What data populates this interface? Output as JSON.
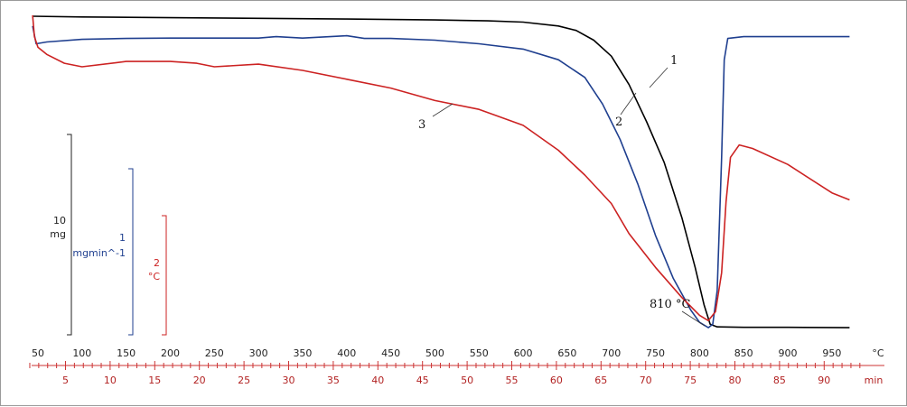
{
  "chart_data": {
    "type": "line",
    "temperature_axis": {
      "unit": "°C",
      "range": [
        44,
        970
      ],
      "ticks": [
        "50",
        "100",
        "150",
        "200",
        "250",
        "300",
        "350",
        "400",
        "450",
        "500",
        "550",
        "600",
        "650",
        "700",
        "750",
        "800",
        "850",
        "900",
        "950"
      ]
    },
    "time_axis": {
      "unit": "min",
      "range": [
        0.5,
        94
      ],
      "ticks": [
        "5",
        "10",
        "15",
        "20",
        "25",
        "30",
        "35",
        "40",
        "45",
        "50",
        "55",
        "60",
        "65",
        "70",
        "75",
        "80",
        "85",
        "90"
      ]
    },
    "scale_bars": [
      {
        "value": "10",
        "unit": "mg",
        "color": "#222222"
      },
      {
        "value": "1",
        "unit": "mgmin^-1",
        "color": "#1f3f8f"
      },
      {
        "value": "2",
        "unit": "°C",
        "color": "#cc2222"
      }
    ],
    "series": [
      {
        "name": "1",
        "color": "#000000",
        "points": [
          [
            44,
            0.05
          ],
          [
            100,
            0.09
          ],
          [
            200,
            0.13
          ],
          [
            300,
            0.17
          ],
          [
            400,
            0.21
          ],
          [
            500,
            0.26
          ],
          [
            560,
            0.31
          ],
          [
            600,
            0.38
          ],
          [
            640,
            0.6
          ],
          [
            660,
            0.85
          ],
          [
            680,
            1.4
          ],
          [
            700,
            2.3
          ],
          [
            720,
            3.9
          ],
          [
            740,
            6.0
          ],
          [
            760,
            8.3
          ],
          [
            780,
            11.4
          ],
          [
            795,
            14.2
          ],
          [
            805,
            16.3
          ],
          [
            812,
            17.4
          ],
          [
            820,
            17.55
          ],
          [
            850,
            17.58
          ],
          [
            900,
            17.58
          ],
          [
            970,
            17.6
          ]
        ]
      },
      {
        "name": "2",
        "color": "#1f3f8f",
        "points": [
          [
            44,
            0.6
          ],
          [
            48,
            1.6
          ],
          [
            60,
            1.5
          ],
          [
            100,
            1.35
          ],
          [
            150,
            1.3
          ],
          [
            200,
            1.28
          ],
          [
            250,
            1.28
          ],
          [
            300,
            1.28
          ],
          [
            320,
            1.2
          ],
          [
            350,
            1.28
          ],
          [
            400,
            1.15
          ],
          [
            420,
            1.3
          ],
          [
            450,
            1.3
          ],
          [
            500,
            1.4
          ],
          [
            550,
            1.6
          ],
          [
            600,
            1.9
          ],
          [
            640,
            2.5
          ],
          [
            670,
            3.5
          ],
          [
            690,
            5.0
          ],
          [
            710,
            7.0
          ],
          [
            730,
            9.5
          ],
          [
            750,
            12.4
          ],
          [
            770,
            14.8
          ],
          [
            790,
            16.6
          ],
          [
            800,
            17.3
          ],
          [
            810,
            17.6
          ],
          [
            815,
            17.4
          ],
          [
            820,
            15.5
          ],
          [
            825,
            8.0
          ],
          [
            828,
            2.5
          ],
          [
            832,
            1.3
          ],
          [
            850,
            1.2
          ],
          [
            900,
            1.2
          ],
          [
            970,
            1.2
          ]
        ]
      },
      {
        "name": "3",
        "color": "#cc2222",
        "points": [
          [
            44,
            0.0
          ],
          [
            46,
            1.2
          ],
          [
            50,
            1.8
          ],
          [
            60,
            2.2
          ],
          [
            80,
            2.7
          ],
          [
            100,
            2.9
          ],
          [
            150,
            2.6
          ],
          [
            200,
            2.6
          ],
          [
            230,
            2.7
          ],
          [
            250,
            2.9
          ],
          [
            300,
            2.75
          ],
          [
            350,
            3.1
          ],
          [
            400,
            3.6
          ],
          [
            450,
            4.1
          ],
          [
            500,
            4.8
          ],
          [
            550,
            5.3
          ],
          [
            600,
            6.2
          ],
          [
            640,
            7.6
          ],
          [
            670,
            9.0
          ],
          [
            700,
            10.6
          ],
          [
            720,
            12.3
          ],
          [
            750,
            14.2
          ],
          [
            780,
            15.9
          ],
          [
            800,
            16.9
          ],
          [
            810,
            17.2
          ],
          [
            818,
            16.7
          ],
          [
            825,
            14.5
          ],
          [
            830,
            10.5
          ],
          [
            835,
            8.0
          ],
          [
            845,
            7.3
          ],
          [
            860,
            7.5
          ],
          [
            900,
            8.4
          ],
          [
            950,
            10.0
          ],
          [
            970,
            10.4
          ]
        ]
      }
    ],
    "annotations": [
      {
        "text": "810 °C",
        "x": 810,
        "series": "2"
      },
      {
        "text": "1",
        "series": "1"
      },
      {
        "text": "2",
        "series": "2"
      },
      {
        "text": "3",
        "series": "3"
      }
    ]
  }
}
